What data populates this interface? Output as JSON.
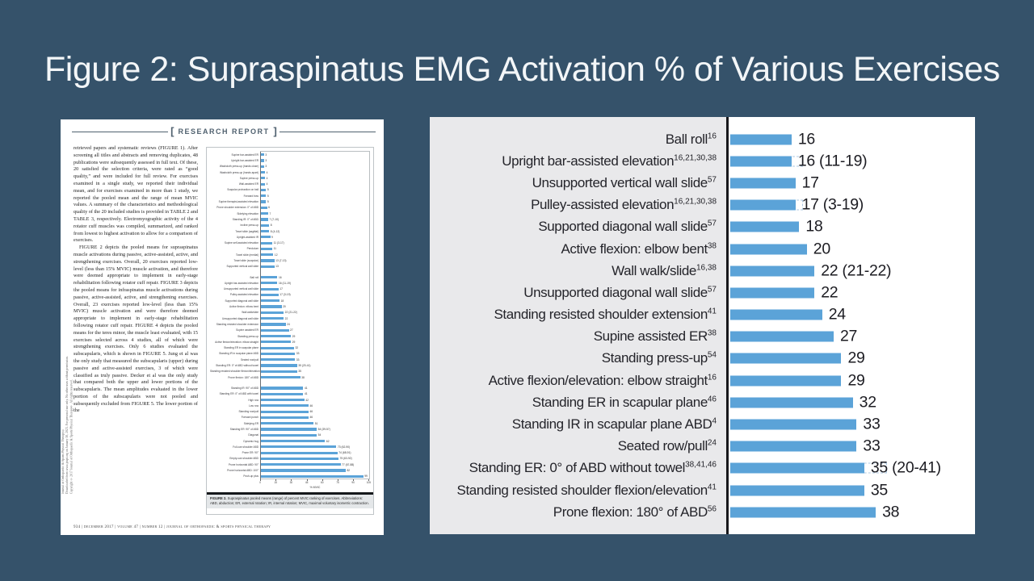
{
  "slide": {
    "title": "Figure 2: Supraspinatus EMG Activation % of Various Exercises",
    "background_color": "#35526A",
    "title_color": "#F3F6F8",
    "bar_color": "#5BA3D8",
    "label_panel_color": "#E9E9EB"
  },
  "journal_page": {
    "header_label": "RESEARCH REPORT",
    "bracket_open": "[",
    "bracket_close": "]",
    "sidebar_text": "Journal of Orthopaedic & Sports Physical Therapy®\nDownloaded from www.jospt.org on January 30, 2023. For personal use only. No other uses without permission.\nCopyright © 2017 Journal of Orthopaedic & Sports Physical Therapy®. All rights reserved.",
    "paragraph_1": "retrieved papers and systematic reviews (FIGURE 1). After screening all titles and abstracts and removing duplicates, 48 publications were subsequently assessed in full text. Of these, 20 satisfied the selection criteria, were rated as “good quality,” and were included for full review. For exercises examined in a single study, we reported their individual mean, and for exercises examined in more than 1 study, we reported the pooled mean and the range of mean MVIC values. A summary of the characteristics and methodological quality of the 20 included studies is provided in TABLE 2 and TABLE 3, respectively. Electromyographic activity of the 4 rotator cuff muscles was compiled, summarized, and ranked from lowest to highest activation to allow for a comparison of exercises.",
    "paragraph_2": "FIGURE 2 depicts the pooled means for supraspinatus muscle activations during passive, active-assisted, active, and strengthening exercises. Overall, 20 exercises reported low-level (less than 15% MVIC) muscle activation, and therefore were deemed appropriate to implement in early-stage rehabilitation following rotator cuff repair. FIGURE 3 depicts the pooled means for infraspinatus muscle activations during passive, active-assisted, active, and strengthening exercises. Overall, 23 exercises reported low-level (less than 15% MVIC) muscle activation and were therefore deemed appropriate to implement in early-stage rehabilitation following rotator cuff repair. FIGURE 4 depicts the pooled means for the teres minor, the muscle least evaluated, with 15 exercises selected across 4 studies, all of which were strengthening exercises. Only 6 studies evaluated the subscapularis, which is shown in FIGURE 5. Jung et al was the only study that measured the subscapularis (upper) during passive and active-assisted exercises, 3 of which were classified as truly passive. Decker et al was the only study that compared both the upper and lower portions of the subscapularis. The mean amplitudes evaluated in the lower portion of the subscapularis were not pooled and subsequently excluded from FIGURE 5. The lower portion of the",
    "caption_lead": "FIGURE 2.",
    "caption_rest": " Supraspinatus pooled means (range) of percent MVIC ranking of exercises. Abbreviations: ABD, abduction; ER, external rotation; IR, internal rotation; MVIC, maximal voluntary isometric contraction.",
    "footer": "934  |  december 2017  |  volume 47  |  number 12  |  journal of orthopaedic & sports physical therapy"
  },
  "chart_data": [
    {
      "id": "supraspinatus-zoomed-panel",
      "type": "bar",
      "orientation": "horizontal",
      "title": "",
      "xlabel": "",
      "ylabel": "",
      "xlim": [
        0,
        40
      ],
      "grid": false,
      "legend": "none",
      "bar_color": "#5BA3D8",
      "items": [
        {
          "label": "Ball roll",
          "refs": "16",
          "value": 16,
          "value_label": "16"
        },
        {
          "label": "Upright bar-assisted elevation",
          "refs": "16,21,30,38",
          "value": 16,
          "value_label": "16 (11-19)",
          "range": [
            11,
            19
          ]
        },
        {
          "label": "Unsupported vertical wall slide",
          "refs": "57",
          "value": 17,
          "value_label": "17"
        },
        {
          "label": "Pulley-assisted elevation",
          "refs": "16,21,30,38",
          "value": 17,
          "value_label": "17 (3-19)",
          "range": [
            3,
            19
          ]
        },
        {
          "label": "Supported diagonal wall slide",
          "refs": "57",
          "value": 18,
          "value_label": "18"
        },
        {
          "label": "Active flexion: elbow bent",
          "refs": "38",
          "value": 20,
          "value_label": "20"
        },
        {
          "label": "Wall walk/slide",
          "refs": "16,38",
          "value": 22,
          "value_label": "22 (21-22)",
          "range": [
            21,
            22
          ]
        },
        {
          "label": "Unsupported diagonal wall slide",
          "refs": "57",
          "value": 22,
          "value_label": "22"
        },
        {
          "label": "Standing resisted shoulder extension",
          "refs": "41",
          "value": 24,
          "value_label": "24"
        },
        {
          "label": "Supine assisted ER",
          "refs": "38",
          "value": 27,
          "value_label": "27"
        },
        {
          "label": "Standing press-up",
          "refs": "54",
          "value": 29,
          "value_label": "29"
        },
        {
          "label": "Active flexion/elevation: elbow straight",
          "refs": "16",
          "value": 29,
          "value_label": "29"
        },
        {
          "label": "Standing ER in scapular plane",
          "refs": "46",
          "value": 32,
          "value_label": "32"
        },
        {
          "label": "Standing IR in scapular plane ABD",
          "refs": "4",
          "value": 33,
          "value_label": "33"
        },
        {
          "label": "Seated row/pull",
          "refs": "24",
          "value": 33,
          "value_label": "33"
        },
        {
          "label": "Standing ER: 0° of ABD without towel",
          "refs": "38,41,46",
          "value": 35,
          "value_label": "35 (20-41)",
          "range": [
            20,
            41
          ]
        },
        {
          "label": "Standing resisted shoulder flexion/elevation",
          "refs": "41",
          "value": 35,
          "value_label": "35"
        },
        {
          "label": "Prone flexion: 180° of ABD",
          "refs": "56",
          "value": 38,
          "value_label": "38"
        }
      ]
    },
    {
      "id": "figure2-full-thumbnail",
      "type": "bar",
      "orientation": "horizontal",
      "title": "",
      "xlabel": "% MVIC",
      "x_ticks": [
        0,
        15,
        30,
        45,
        60,
        75,
        90,
        105
      ],
      "xlim": [
        0,
        105
      ],
      "grid": false,
      "bar_color": "#5BA3D8",
      "groups": [
        {
          "items": [
            [
              "Supine bar-assisted ER",
              3,
              "3"
            ],
            [
              "Upright bar-assisted ER",
              3,
              "3"
            ],
            [
              "Washcloth press-up (hands close)",
              3,
              "3"
            ],
            [
              "Washcloth press-up (hands apart)",
              4,
              "4"
            ],
            [
              "Supine press-up",
              4,
              "4"
            ],
            [
              "Wall-assisted ER",
              4,
              "4"
            ],
            [
              "Scapular protraction on ball",
              5,
              "5"
            ],
            [
              "Forward bow",
              5,
              "5"
            ],
            [
              "Supine therapist-assisted elevation",
              5,
              "5"
            ],
            [
              "Prone shoulder extension: 0° of ABD",
              6,
              "6"
            ],
            [
              "Sidelying elevation",
              7,
              "7"
            ],
            [
              "Standing IR: 0° of ABD",
              7,
              "7 (7-10)"
            ],
            [
              "Incline press-up",
              8,
              "8"
            ],
            [
              "Towel slide (sagittal)",
              8,
              "8 (4-12)"
            ],
            [
              "Upright-assisted IR",
              9,
              "9"
            ],
            [
              "Supine self-assisted elevation",
              11,
              "11 (3-17)"
            ],
            [
              "Pendulum",
              11,
              "11"
            ],
            [
              "Towel slide (medial)",
              12,
              "12"
            ],
            [
              "Towel slide (scapular)",
              13,
              "13 (7-13)"
            ],
            [
              "Supported vertical wall slide",
              13,
              "13"
            ]
          ]
        },
        {
          "items": [
            [
              "Ball roll",
              16,
              "16"
            ],
            [
              "Upright bar-assisted elevation",
              16,
              "16 (11-19)"
            ],
            [
              "Unsupported vertical wall slide",
              17,
              "17"
            ],
            [
              "Pulley-assisted elevation",
              17,
              "17 (3-19)"
            ],
            [
              "Supported diagonal wall slide",
              18,
              "18"
            ],
            [
              "Active flexion: elbow bent",
              20,
              "20"
            ],
            [
              "Wall walk/slide",
              22,
              "22 (21-22)"
            ],
            [
              "Unsupported diagonal wall slide",
              22,
              "22"
            ],
            [
              "Standing resisted shoulder extension",
              24,
              "24"
            ],
            [
              "Supine assisted ER",
              27,
              "27"
            ],
            [
              "Standing press-up",
              29,
              "29"
            ],
            [
              "Active flexion/elevation: elbow straight",
              29,
              "29"
            ],
            [
              "Standing ER in scapular plane",
              32,
              "32"
            ],
            [
              "Standing IR in scapular plane ABD",
              33,
              "33"
            ],
            [
              "Seated row/pull",
              33,
              "33"
            ],
            [
              "Standing ER: 0° of ABD without towel",
              35,
              "35 (20-41)"
            ],
            [
              "Standing resisted shoulder flexion/elevation",
              35,
              "35"
            ],
            [
              "Prone flexion: 180° of ABD",
              38,
              "38"
            ]
          ]
        },
        {
          "items": [
            [
              "Standing IR: 90° of ABD",
              41,
              "41"
            ],
            [
              "Standing ER: 0° of ABD with towel",
              41,
              "41"
            ],
            [
              "High row",
              42,
              "42"
            ],
            [
              "Low row",
              46,
              "46"
            ],
            [
              "Standing row/pull",
              46,
              "46"
            ],
            [
              "Forward punch",
              46,
              "46"
            ],
            [
              "Sidelying ER",
              51,
              "51"
            ],
            [
              "Standing ER: 90° of ABD",
              54,
              "54 (39-57)"
            ],
            [
              "Diagonal",
              54,
              "54"
            ],
            [
              "Dynamic hug",
              62,
              "62"
            ],
            [
              "Full-can shoulder ABD",
              73,
              "73 (62-90)"
            ],
            [
              "Prone ER: 90°",
              74,
              "74 (68-91)"
            ],
            [
              "Empty-can shoulder ABD",
              75,
              "75 (63-92)"
            ],
            [
              "Prone horizontal ABD: 90°",
              77,
              "77 (67-88)"
            ],
            [
              "Prone horizontal ABD: 100°",
              82,
              "82"
            ],
            [
              "Push-up plus",
              99,
              "99"
            ]
          ]
        }
      ]
    }
  ]
}
